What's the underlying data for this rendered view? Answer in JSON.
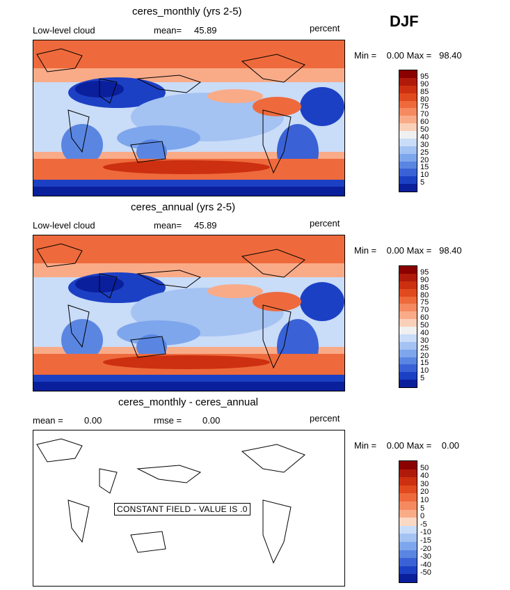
{
  "season": "DJF",
  "panels": [
    {
      "title": "ceres_monthly (yrs 2-5)",
      "left_label": "Low-level cloud",
      "stat_label": "mean=",
      "stat_value": "45.89",
      "units": "percent",
      "minmax": "Min =    0.00 Max =   98.40",
      "colorbar_ticks": [
        "95",
        "90",
        "85",
        "80",
        "75",
        "70",
        "60",
        "50",
        "40",
        "30",
        "25",
        "20",
        "15",
        "10",
        "5"
      ]
    },
    {
      "title": "ceres_annual (yrs 2-5)",
      "left_label": "Low-level cloud",
      "stat_label": "mean=",
      "stat_value": "45.89",
      "units": "percent",
      "minmax": "Min =    0.00 Max =   98.40",
      "colorbar_ticks": [
        "95",
        "90",
        "85",
        "80",
        "75",
        "70",
        "60",
        "50",
        "40",
        "30",
        "25",
        "20",
        "15",
        "10",
        "5"
      ]
    },
    {
      "title": "ceres_monthly - ceres_annual",
      "left_label": "mean =",
      "left_value": "0.00",
      "stat_label": "rmse =",
      "stat_value": "0.00",
      "units": "percent",
      "minmax": "Min =    0.00 Max =    0.00",
      "notice": "CONSTANT FIELD - VALUE IS .0",
      "colorbar_ticks": [
        "50",
        "40",
        "30",
        "20",
        "10",
        "5",
        "0",
        "-5",
        "-10",
        "-15",
        "-20",
        "-30",
        "-40",
        "-50"
      ]
    }
  ],
  "colors": {
    "scale16": [
      "#8b0000",
      "#b01a0a",
      "#cc3010",
      "#e04a1e",
      "#ee6a3c",
      "#f58a60",
      "#f9ab88",
      "#fbd0b8",
      "#f0f0f0",
      "#c9dcf8",
      "#a4c2f2",
      "#7ea6ec",
      "#5a86e2",
      "#3a62d6",
      "#1c40c4",
      "#0a1f9c"
    ],
    "scale14": [
      "#8b0000",
      "#b01a0a",
      "#cc3010",
      "#e04a1e",
      "#ee6a3c",
      "#f58a60",
      "#f9ab88",
      "#fbd8c4",
      "#c9dcf8",
      "#a4c2f2",
      "#7ea6ec",
      "#5a86e2",
      "#3a62d6",
      "#1c40c4",
      "#0a1f9c"
    ]
  }
}
